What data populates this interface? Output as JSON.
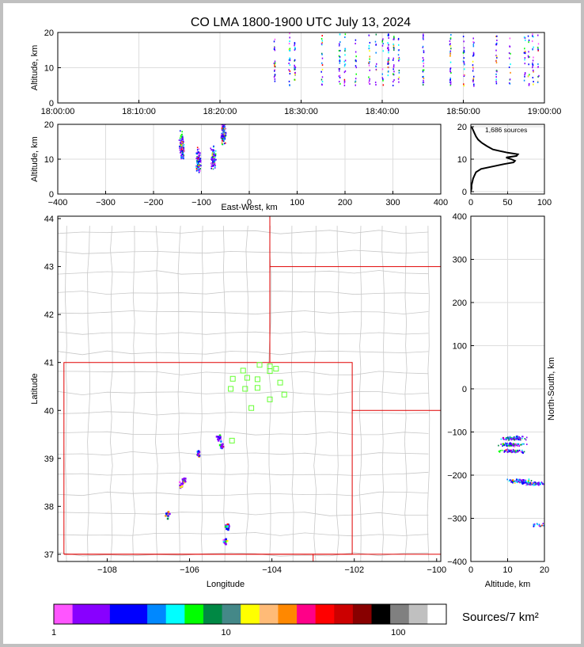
{
  "title": "CO LMA 1800-1900 UTC July 13, 2024",
  "colors": {
    "background_outer": "#c0c0c0",
    "panel_background": "#ffffff",
    "grid": "#dddddd",
    "county_lines": "#c8c8c8",
    "state_lines": "#e00000",
    "station_marker": "#66ff33",
    "histogram_line": "#000000"
  },
  "chart_data": [
    {
      "id": "time_height",
      "type": "scatter",
      "xlabel": "",
      "ylabel": "Altitude, km",
      "x_ticks": [
        "18:00:00",
        "18:10:00",
        "18:20:00",
        "18:30:00",
        "18:40:00",
        "18:50:00",
        "19:00:00"
      ],
      "xlim": [
        "18:00:00",
        "19:00:00"
      ],
      "y_ticks": [
        0,
        10,
        20
      ],
      "ylim": [
        0,
        20
      ],
      "grid": true,
      "source_columns_utc": [
        "18:26:40",
        "18:28:30",
        "18:29:10",
        "18:32:30",
        "18:34:40",
        "18:35:20",
        "18:36:40",
        "18:38:20",
        "18:39:10",
        "18:40:00",
        "18:40:40",
        "18:41:20",
        "18:42:00",
        "18:45:00",
        "18:48:20",
        "18:50:00",
        "18:51:10",
        "18:54:00",
        "18:55:40",
        "18:57:30",
        "18:58:00",
        "18:58:30",
        "18:59:10"
      ],
      "altitude_range_km": [
        5,
        20
      ]
    },
    {
      "id": "east_west_height",
      "type": "scatter",
      "xlabel": "East-West, km",
      "ylabel": "Altitude, km",
      "x_ticks": [
        -400,
        -300,
        -200,
        -100,
        0,
        100,
        200,
        300,
        400
      ],
      "xlim": [
        -400,
        400
      ],
      "y_ticks": [
        0,
        10,
        20
      ],
      "ylim": [
        0,
        20
      ],
      "grid": true,
      "source_clusters": [
        {
          "x": -142,
          "altitude_km": 14
        },
        {
          "x": -108,
          "altitude_km": 9.5
        },
        {
          "x": -76,
          "altitude_km": 10.5
        },
        {
          "x": -55,
          "altitude_km": 18
        }
      ]
    },
    {
      "id": "altitude_histogram",
      "type": "line",
      "annotation": "1,686 sources",
      "x_ticks": [
        0,
        50,
        100
      ],
      "xlim": [
        0,
        100
      ],
      "y_ticks": [
        0,
        10,
        20
      ],
      "ylim": [
        0,
        20
      ],
      "grid": true,
      "profile": [
        {
          "alt": 0,
          "count": 0
        },
        {
          "alt": 1,
          "count": 1
        },
        {
          "alt": 2,
          "count": 1
        },
        {
          "alt": 3,
          "count": 2
        },
        {
          "alt": 4,
          "count": 3
        },
        {
          "alt": 5,
          "count": 5
        },
        {
          "alt": 6,
          "count": 7
        },
        {
          "alt": 7,
          "count": 14
        },
        {
          "alt": 8,
          "count": 35
        },
        {
          "alt": 8.5,
          "count": 45
        },
        {
          "alt": 9,
          "count": 58
        },
        {
          "alt": 9.5,
          "count": 60
        },
        {
          "alt": 10,
          "count": 55
        },
        {
          "alt": 10.5,
          "count": 48
        },
        {
          "alt": 11,
          "count": 62
        },
        {
          "alt": 11.5,
          "count": 64
        },
        {
          "alt": 12,
          "count": 50
        },
        {
          "alt": 12.5,
          "count": 40
        },
        {
          "alt": 13,
          "count": 30
        },
        {
          "alt": 14,
          "count": 22
        },
        {
          "alt": 15,
          "count": 15
        },
        {
          "alt": 16,
          "count": 10
        },
        {
          "alt": 17,
          "count": 7
        },
        {
          "alt": 18,
          "count": 5
        },
        {
          "alt": 19,
          "count": 3
        },
        {
          "alt": 20,
          "count": 1
        }
      ]
    },
    {
      "id": "plan_view",
      "type": "scatter",
      "xlabel": "Longitude",
      "ylabel": "Latitude",
      "x_ticks": [
        "−108",
        "−106",
        "−104",
        "−102",
        "−100"
      ],
      "xlim": [
        -109.2,
        -99.9
      ],
      "y_ticks": [
        37,
        38,
        39,
        40,
        41,
        42,
        43,
        44
      ],
      "ylim": [
        36.85,
        44.05
      ],
      "stations": [
        {
          "lon": -104.3,
          "lat": 40.95
        },
        {
          "lon": -104.05,
          "lat": 40.92
        },
        {
          "lon": -103.9,
          "lat": 40.87
        },
        {
          "lon": -104.7,
          "lat": 40.83
        },
        {
          "lon": -104.05,
          "lat": 40.82
        },
        {
          "lon": -104.6,
          "lat": 40.68
        },
        {
          "lon": -104.35,
          "lat": 40.65
        },
        {
          "lon": -104.95,
          "lat": 40.66
        },
        {
          "lon": -103.8,
          "lat": 40.58
        },
        {
          "lon": -105.0,
          "lat": 40.45
        },
        {
          "lon": -104.65,
          "lat": 40.45
        },
        {
          "lon": -104.35,
          "lat": 40.47
        },
        {
          "lon": -103.7,
          "lat": 40.33
        },
        {
          "lon": -104.05,
          "lat": 40.23
        },
        {
          "lon": -104.5,
          "lat": 40.05
        },
        {
          "lon": -104.97,
          "lat": 39.37
        }
      ],
      "source_clusters": [
        {
          "lon": -105.3,
          "lat": 39.45
        },
        {
          "lon": -105.25,
          "lat": 39.27
        },
        {
          "lon": -105.8,
          "lat": 39.12
        },
        {
          "lon": -106.15,
          "lat": 38.55
        },
        {
          "lon": -106.22,
          "lat": 38.45
        },
        {
          "lon": -106.55,
          "lat": 37.83
        },
        {
          "lon": -105.1,
          "lat": 37.6
        },
        {
          "lon": -105.15,
          "lat": 37.3
        }
      ]
    },
    {
      "id": "north_south_height",
      "type": "scatter",
      "xlabel": "Altitude, km",
      "ylabel": "North-South, km",
      "x_ticks": [
        0,
        10,
        20
      ],
      "xlim": [
        0,
        20
      ],
      "y_ticks": [
        -400,
        -300,
        -200,
        -100,
        0,
        100,
        200,
        300,
        400
      ],
      "ylim": [
        -400,
        400
      ],
      "grid": true,
      "source_clusters": [
        {
          "altitude_km": 11.5,
          "y": -113
        },
        {
          "altitude_km": 11,
          "y": -128
        },
        {
          "altitude_km": 11,
          "y": -143
        },
        {
          "altitude_km": 13,
          "y": -212
        },
        {
          "altitude_km": 17,
          "y": -218
        },
        {
          "altitude_km": 19,
          "y": -315
        }
      ]
    },
    {
      "id": "colorbar",
      "type": "heatmap",
      "label": "Sources/7 km²",
      "tick_labels": [
        "1",
        "10",
        "100"
      ],
      "scale": "log",
      "colors": [
        "#ff55ff",
        "#8800ff",
        "#8800ff",
        "#0000ff",
        "#0000ff",
        "#0088ff",
        "#00ffff",
        "#00ff00",
        "#008844",
        "#448888",
        "#ffff00",
        "#ffbb77",
        "#ff8800",
        "#ff0088",
        "#ff0000",
        "#cc0000",
        "#880000",
        "#000000",
        "#808080",
        "#c0c0c0",
        "#ffffff"
      ]
    }
  ]
}
